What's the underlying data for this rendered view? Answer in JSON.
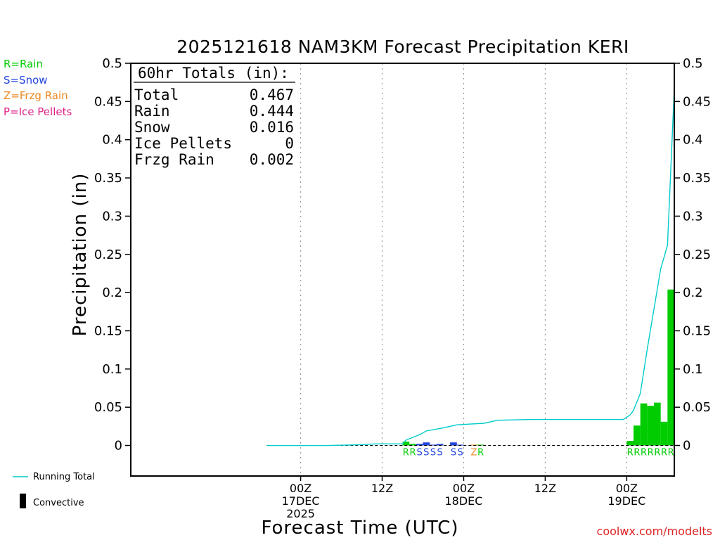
{
  "chart_data": {
    "type": "bar",
    "title": "2025121618 NAM3KM Forecast Precipitation KERI",
    "xlabel": "Forecast Time (UTC)",
    "ylabel": "Precipitation (in)",
    "ylim": [
      -0.04,
      0.5
    ],
    "yticks": [
      0,
      0.05,
      0.1,
      0.15,
      0.2,
      0.25,
      0.3,
      0.35,
      0.4,
      0.45,
      0.5
    ],
    "ytick_labels": [
      "0",
      "0.05",
      "0.1",
      "0.15",
      "0.2",
      "0.25",
      "0.3",
      "0.35",
      "0.4",
      "0.45",
      "0.5"
    ],
    "x_range_hours": [
      -19,
      61
    ],
    "x_ticks": [
      {
        "hour": 6,
        "line1": "00Z",
        "line2": "17DEC",
        "line3": "2025"
      },
      {
        "hour": 18,
        "line1": "12Z",
        "line2": "",
        "line3": ""
      },
      {
        "hour": 30,
        "line1": "00Z",
        "line2": "18DEC",
        "line3": ""
      },
      {
        "hour": 42,
        "line1": "12Z",
        "line2": "",
        "line3": ""
      },
      {
        "hour": 54,
        "line1": "00Z",
        "line2": "19DEC",
        "line3": ""
      }
    ],
    "grid": "vertical-dotted",
    "type_colors": {
      "R": "#00cc00",
      "S": "#2244dd",
      "Z": "#ee8822",
      "P": "#dd2288"
    },
    "bars": [
      {
        "hour": 22,
        "value": 0.005,
        "type": "R"
      },
      {
        "hour": 23,
        "value": 0.002,
        "type": "R"
      },
      {
        "hour": 24,
        "value": 0.002,
        "type": "S"
      },
      {
        "hour": 25,
        "value": 0.004,
        "type": "S"
      },
      {
        "hour": 26,
        "value": 0.001,
        "type": "S"
      },
      {
        "hour": 27,
        "value": 0.002,
        "type": "S"
      },
      {
        "hour": 29,
        "value": 0.004,
        "type": "S"
      },
      {
        "hour": 30,
        "value": 0.001,
        "type": "S"
      },
      {
        "hour": 32,
        "value": 0.001,
        "type": "Z"
      },
      {
        "hour": 33,
        "value": 0.001,
        "type": "R"
      },
      {
        "hour": 55,
        "value": 0.006,
        "type": "R"
      },
      {
        "hour": 56,
        "value": 0.026,
        "type": "R"
      },
      {
        "hour": 57,
        "value": 0.055,
        "type": "R"
      },
      {
        "hour": 58,
        "value": 0.052,
        "type": "R"
      },
      {
        "hour": 59,
        "value": 0.056,
        "type": "R"
      },
      {
        "hour": 60,
        "value": 0.031,
        "type": "R"
      },
      {
        "hour": 61,
        "value": 0.204,
        "type": "R"
      }
    ],
    "running_total": {
      "name": "Running Total",
      "color": "#00cccc",
      "points": [
        [
          1,
          0.0
        ],
        [
          10,
          0.0
        ],
        [
          15,
          0.001
        ],
        [
          17,
          0.002
        ],
        [
          21,
          0.002
        ],
        [
          21.5,
          0.007
        ],
        [
          23.5,
          0.014
        ],
        [
          24.5,
          0.019
        ],
        [
          27,
          0.023
        ],
        [
          29,
          0.027
        ],
        [
          31,
          0.028
        ],
        [
          33,
          0.029
        ],
        [
          35,
          0.033
        ],
        [
          40,
          0.034
        ],
        [
          48,
          0.034
        ],
        [
          53.5,
          0.034
        ],
        [
          54.5,
          0.04
        ],
        [
          55,
          0.046
        ],
        [
          56,
          0.068
        ],
        [
          57,
          0.125
        ],
        [
          58,
          0.178
        ],
        [
          59,
          0.231
        ],
        [
          60,
          0.262
        ],
        [
          61,
          0.467
        ]
      ]
    }
  },
  "totals_box": {
    "header": "60hr Totals (in):",
    "rows": [
      {
        "label": "Total",
        "value": "0.467"
      },
      {
        "label": "Rain",
        "value": "0.444"
      },
      {
        "label": "Snow",
        "value": "0.016"
      },
      {
        "label": "Ice Pellets",
        "value": "0"
      },
      {
        "label": "Frzg Rain",
        "value": "0.002"
      }
    ]
  },
  "type_legend": [
    {
      "text": "R=Rain",
      "color": "#00cc00"
    },
    {
      "text": "S=Snow",
      "color": "#2244dd"
    },
    {
      "text": "Z=Frzg Rain",
      "color": "#ee8822"
    },
    {
      "text": "P=Ice Pellets",
      "color": "#dd2288"
    }
  ],
  "bottom_legend": {
    "running_total_label": "Running Total",
    "convective_label": "Convective"
  },
  "credit": {
    "text": "coolwx.com/modelts",
    "color": "#dd2222"
  }
}
